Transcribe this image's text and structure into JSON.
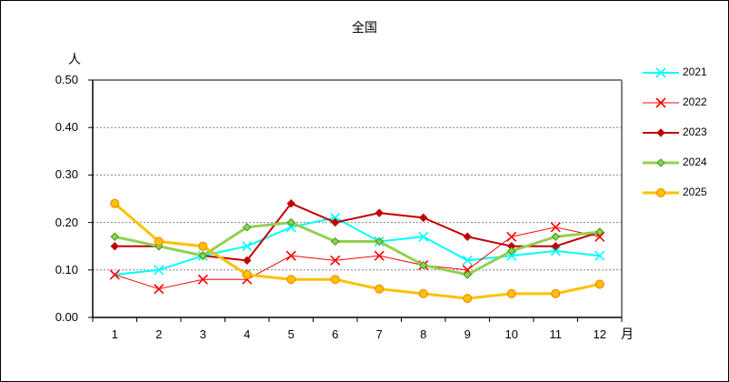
{
  "chart_data": {
    "type": "line",
    "title": "全国",
    "xlabel": "月",
    "ylabel": "人",
    "categories": [
      "1",
      "2",
      "3",
      "4",
      "5",
      "6",
      "7",
      "8",
      "9",
      "10",
      "11",
      "12"
    ],
    "ylim": [
      0,
      0.5
    ],
    "yticks": [
      "0.00",
      "0.10",
      "0.20",
      "0.30",
      "0.40",
      "0.50"
    ],
    "grid": "horizontal dashed",
    "legend_position": "right",
    "series": [
      {
        "name": "2021",
        "color": "#00FFFF",
        "marker": "x",
        "line_width": 2,
        "values": [
          0.09,
          0.1,
          0.13,
          0.15,
          0.19,
          0.21,
          0.16,
          0.17,
          0.12,
          0.13,
          0.14,
          0.13
        ]
      },
      {
        "name": "2022",
        "color": "#FF0000",
        "marker": "x",
        "line_width": 1,
        "values": [
          0.09,
          0.06,
          0.08,
          0.08,
          0.13,
          0.12,
          0.13,
          0.11,
          0.1,
          0.17,
          0.19,
          0.17
        ]
      },
      {
        "name": "2023",
        "color": "#C00000",
        "marker": "diamond",
        "line_width": 2,
        "values": [
          0.15,
          0.15,
          0.13,
          0.12,
          0.24,
          0.2,
          0.22,
          0.21,
          0.17,
          0.15,
          0.15,
          0.18
        ]
      },
      {
        "name": "2024",
        "color": "#92D050",
        "marker": "diamond",
        "line_width": 3,
        "values": [
          0.17,
          0.15,
          0.13,
          0.19,
          0.2,
          0.16,
          0.16,
          0.11,
          0.09,
          0.14,
          0.17,
          0.18
        ]
      },
      {
        "name": "2025",
        "color": "#FFC000",
        "marker": "circle",
        "line_width": 3,
        "values": [
          0.24,
          0.16,
          0.15,
          0.09,
          0.08,
          0.08,
          0.06,
          0.05,
          0.04,
          0.05,
          0.05,
          0.07
        ]
      }
    ]
  },
  "header": {
    "title": "全国"
  },
  "axes": {
    "y_unit": "人",
    "x_unit": "月"
  }
}
